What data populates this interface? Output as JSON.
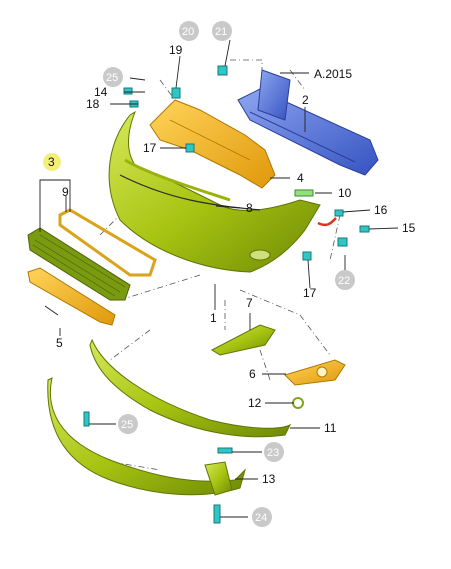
{
  "diagram": {
    "labels": {
      "p1": "1",
      "p2": "2",
      "p3": "3",
      "p4": "4",
      "p5": "5",
      "p6": "6",
      "p7": "7",
      "p8": "8",
      "p9": "9",
      "p10": "10",
      "p11": "11",
      "p12": "12",
      "p13": "13",
      "p14": "14",
      "p15": "15",
      "p16": "16",
      "p17a": "17",
      "p17b": "17",
      "p18": "18",
      "p19": "19",
      "ref": "A.2015"
    },
    "circled_labels": {
      "c20": "20",
      "c21": "21",
      "c22": "22",
      "c23": "23",
      "c24": "24",
      "c25a": "25",
      "c25b": "25"
    },
    "highlighted_label": "3",
    "colors": {
      "bumper_green": "#a8c412",
      "reinforcement_blue": "#4f6fd6",
      "absorber_orange": "#f0b51a",
      "clip_teal": "#2fc6c6",
      "circle_gray": "#c9c9c9",
      "highlight_yellow": "#f3f07a",
      "arrow_red": "#e0301e"
    }
  }
}
